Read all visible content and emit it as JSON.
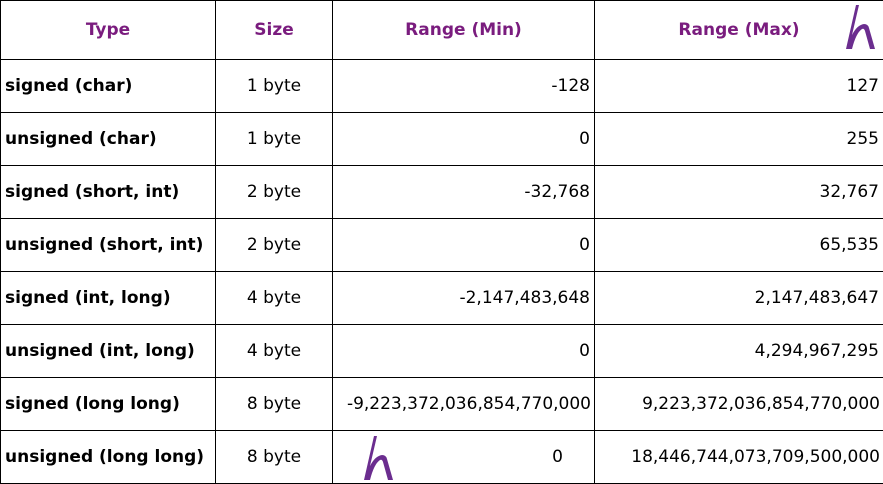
{
  "colors": {
    "header_text": "#7a1c7e",
    "body_text": "#000000",
    "border": "#000000",
    "logo": "#6b2d8f"
  },
  "logo_icon": "h-logo",
  "table": {
    "headers": [
      "Type",
      "Size",
      "Range (Min)",
      "Range (Max)"
    ],
    "rows": [
      {
        "type": "signed (char)",
        "size": "1 byte",
        "min": "-128",
        "max": "127"
      },
      {
        "type": "unsigned (char)",
        "size": "1 byte",
        "min": "0",
        "max": "255"
      },
      {
        "type": "signed (short, int)",
        "size": "2 byte",
        "min": "-32,768",
        "max": "32,767"
      },
      {
        "type": "unsigned (short, int)",
        "size": "2 byte",
        "min": "0",
        "max": "65,535"
      },
      {
        "type": "signed (int, long)",
        "size": "4 byte",
        "min": "-2,147,483,648",
        "max": "2,147,483,647"
      },
      {
        "type": "unsigned (int, long)",
        "size": "4 byte",
        "min": "0",
        "max": "4,294,967,295"
      },
      {
        "type": "signed (long long)",
        "size": "8 byte",
        "min": "-9,223,372,036,854,770,000",
        "max": "9,223,372,036,854,770,000"
      },
      {
        "type": "unsigned (long long)",
        "size": "8 byte",
        "min": "0",
        "max": "18,446,744,073,709,500,000"
      }
    ]
  }
}
